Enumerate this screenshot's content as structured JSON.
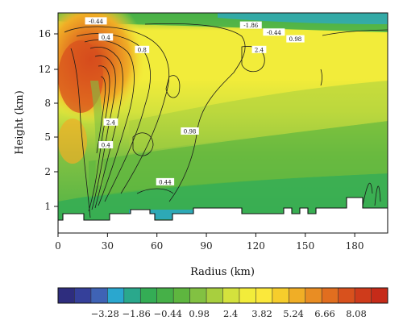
{
  "chart_data": {
    "type": "heatmap",
    "title": "",
    "xlabel": "Radius (km)",
    "ylabel": "Height (km)",
    "xlim": [
      0,
      200
    ],
    "ylim": [
      0,
      17.5
    ],
    "x_ticks": [
      0,
      30,
      60,
      90,
      120,
      150,
      180
    ],
    "y_ticks": [
      1,
      2,
      5,
      8,
      12,
      16
    ],
    "y_scale": "nonlinear (pressure-like)",
    "grid": false,
    "colorbar": {
      "position": "bottom",
      "ticks": [
        "-3.28",
        "-1.86",
        "-0.44",
        "0.98",
        "2.4",
        "3.82",
        "5.24",
        "6.66",
        "8.08"
      ],
      "range": [
        -5.4,
        9.5
      ],
      "levels": [
        -4.7,
        -3.99,
        -3.28,
        -2.57,
        -1.86,
        -1.15,
        -0.44,
        0.27,
        0.98,
        1.69,
        2.4,
        3.11,
        3.82,
        4.53,
        5.24,
        5.95,
        6.66,
        7.37,
        8.08,
        8.79
      ],
      "colors": [
        "#2e2d7e",
        "#35409a",
        "#3f63b5",
        "#2aa7cf",
        "#2aa88c",
        "#34ad55",
        "#46b048",
        "#5eb63f",
        "#82c142",
        "#a8cf3e",
        "#d4e23d",
        "#f2ec3a",
        "#fbe83b",
        "#f6cd2c",
        "#f0ae26",
        "#e98d23",
        "#e16e1f",
        "#d8511d",
        "#cf3b1b",
        "#c62b19"
      ]
    },
    "contour_labels": [
      {
        "value": "-0.44",
        "x": 23,
        "y": 16.9
      },
      {
        "value": "-1.86",
        "x": 117,
        "y": 16.6
      },
      {
        "value": "-0.44",
        "x": 131,
        "y": 16.1
      },
      {
        "value": "0.98",
        "x": 144,
        "y": 15.4
      },
      {
        "value": "0.4",
        "x": 29,
        "y": 15.6
      },
      {
        "value": "0.8",
        "x": 51,
        "y": 14.2
      },
      {
        "value": "2.4",
        "x": 122,
        "y": 14.2
      },
      {
        "value": "2.4",
        "x": 32,
        "y": 6.3
      },
      {
        "value": "0.98",
        "x": 80,
        "y": 5.5
      },
      {
        "value": "0.4",
        "x": 29,
        "y": 4.3
      },
      {
        "value": "0.44",
        "x": 65,
        "y": 1.7
      }
    ],
    "surface": {
      "color": "#ffffff",
      "terrain_top_height_km": 0.95,
      "base_height_km": 0.5
    }
  }
}
